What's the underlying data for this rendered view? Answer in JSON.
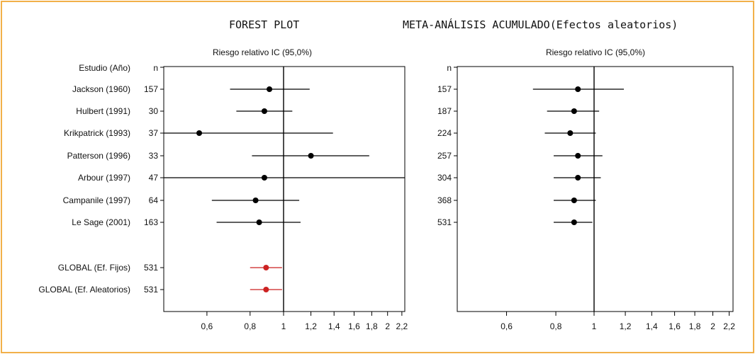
{
  "titles": {
    "left": "FOREST PLOT",
    "right": "META-ANÁLISIS ACUMULADO(Efectos aleatorios)"
  },
  "chart_data": [
    {
      "type": "forest",
      "title": "FOREST PLOT",
      "axis_title": "Riesgo relativo IC  (95,0%)",
      "header_label": "Estudio  (Año)",
      "header_n": "n",
      "scale": "log",
      "reference_line": 1,
      "xlim": [
        0.45,
        2.4
      ],
      "xticks": [
        0.6,
        0.8,
        1,
        1.2,
        1.4,
        1.6,
        1.8,
        2,
        2.2
      ],
      "xtick_labels": [
        "0,6",
        "0,8",
        "1",
        "1,2",
        "1,4",
        "1,6",
        "1,8",
        "2",
        "2,2"
      ],
      "rows": [
        {
          "label": "Jackson (1960)",
          "n": "157",
          "est": 0.91,
          "lo": 0.7,
          "hi": 1.19,
          "color": "#000000"
        },
        {
          "label": "Hulbert (1991)",
          "n": "30",
          "est": 0.88,
          "lo": 0.73,
          "hi": 1.06,
          "color": "#000000"
        },
        {
          "label": "Krikpatrick (1993)",
          "n": "37",
          "est": 0.57,
          "lo": 0.45,
          "hi": 1.39,
          "color": "#000000"
        },
        {
          "label": "Patterson (1996)",
          "n": "33",
          "est": 1.2,
          "lo": 0.81,
          "hi": 1.77,
          "color": "#000000"
        },
        {
          "label": "Arbour (1997)",
          "n": "47",
          "est": 0.88,
          "lo": 0.45,
          "hi": 2.4,
          "color": "#000000"
        },
        {
          "label": "Campanile (1997)",
          "n": "64",
          "est": 0.83,
          "lo": 0.62,
          "hi": 1.11,
          "color": "#000000"
        },
        {
          "label": "Le Sage (2001)",
          "n": "163",
          "est": 0.85,
          "lo": 0.64,
          "hi": 1.12,
          "color": "#000000"
        },
        {
          "label": "GLOBAL (Ef. Fijos)",
          "n": "531",
          "est": 0.89,
          "lo": 0.8,
          "hi": 0.99,
          "color": "#cc2222"
        },
        {
          "label": "GLOBAL (Ef. Aleatorios)",
          "n": "531",
          "est": 0.89,
          "lo": 0.8,
          "hi": 0.99,
          "color": "#cc2222"
        }
      ]
    },
    {
      "type": "forest",
      "title": "META-ANÁLISIS ACUMULADO(Efectos aleatorios)",
      "axis_title": "Riesgo relativo IC  (95,0%)",
      "header_n": "n",
      "scale": "log",
      "reference_line": 1,
      "xlim": [
        0.45,
        2.4
      ],
      "xticks": [
        0.6,
        0.8,
        1,
        1.2,
        1.4,
        1.6,
        1.8,
        2,
        2.2
      ],
      "xtick_labels": [
        "0,6",
        "0,8",
        "1",
        "1,2",
        "1,4",
        "1,6",
        "1,8",
        "2",
        "2,2"
      ],
      "rows": [
        {
          "n": "157",
          "est": 0.91,
          "lo": 0.7,
          "hi": 1.19,
          "color": "#000000"
        },
        {
          "n": "187",
          "est": 0.89,
          "lo": 0.76,
          "hi": 1.03,
          "color": "#000000"
        },
        {
          "n": "224",
          "est": 0.87,
          "lo": 0.75,
          "hi": 1.01,
          "color": "#000000"
        },
        {
          "n": "257",
          "est": 0.91,
          "lo": 0.79,
          "hi": 1.05,
          "color": "#000000"
        },
        {
          "n": "304",
          "est": 0.91,
          "lo": 0.79,
          "hi": 1.04,
          "color": "#000000"
        },
        {
          "n": "368",
          "est": 0.89,
          "lo": 0.79,
          "hi": 1.01,
          "color": "#000000"
        },
        {
          "n": "531",
          "est": 0.89,
          "lo": 0.79,
          "hi": 0.99,
          "color": "#000000"
        }
      ]
    }
  ]
}
